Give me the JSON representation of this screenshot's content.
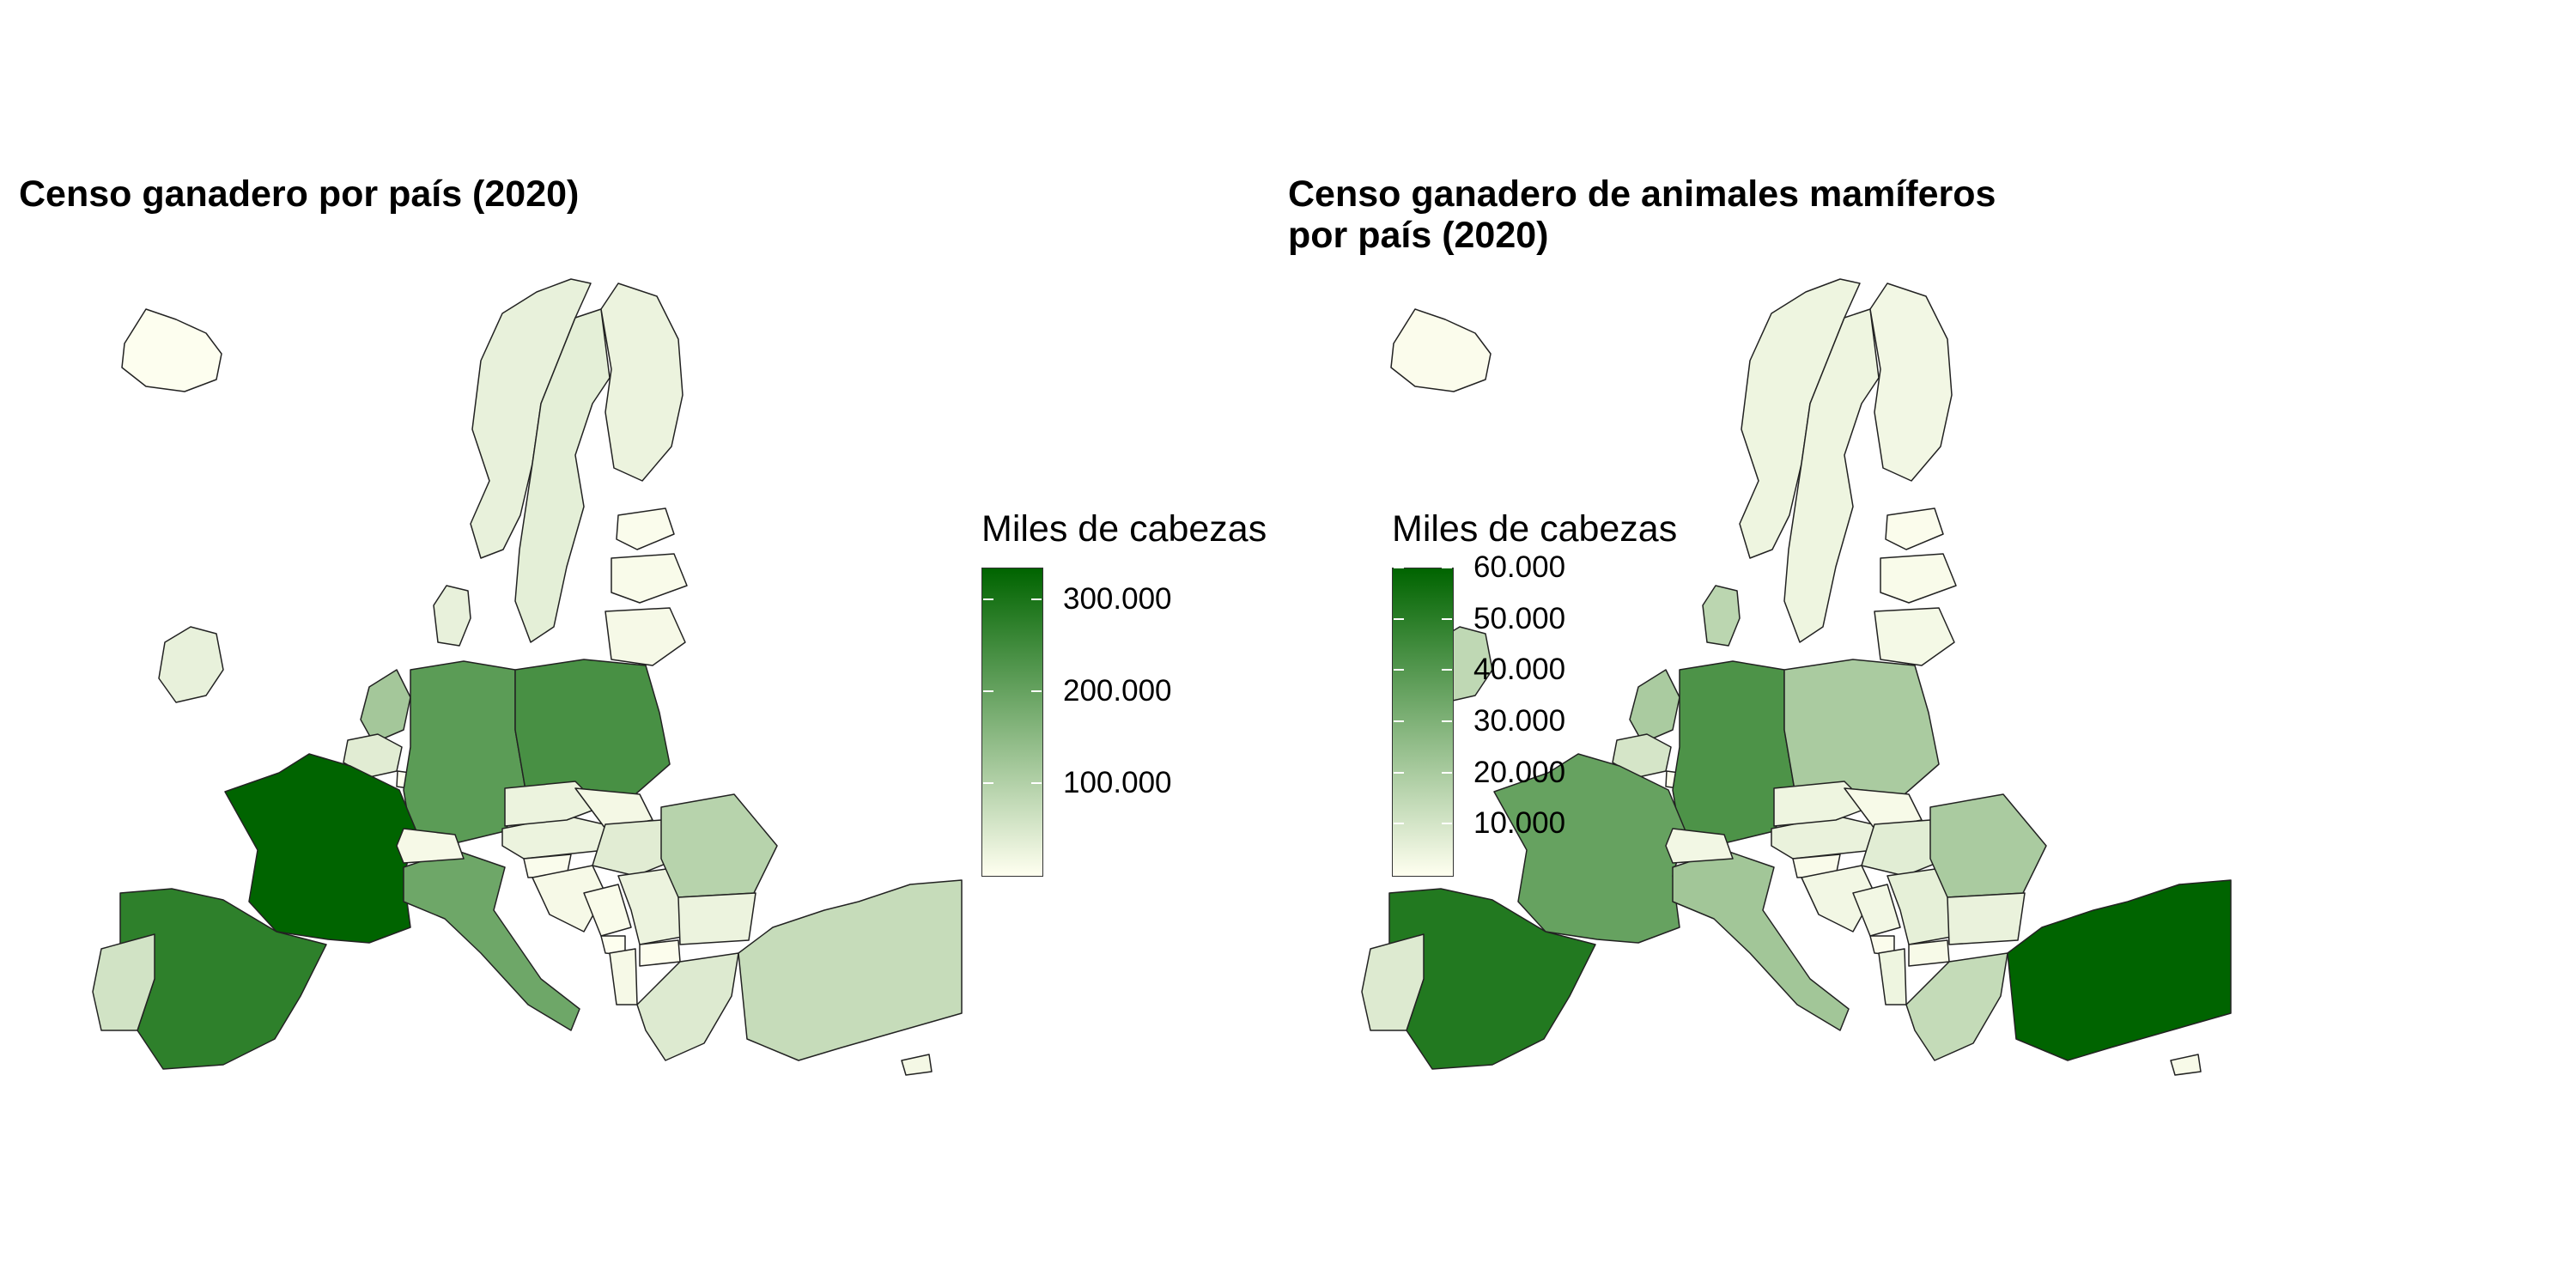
{
  "maps": [
    {
      "title": "Censo ganadero por país (2020)",
      "legend": {
        "title": "Miles de cabezas",
        "colors": {
          "low": "#FFFFF0",
          "high": "#006400"
        },
        "range": [
          0,
          335000
        ],
        "ticks": [
          {
            "value": 100000,
            "label": "100.000"
          },
          {
            "value": 200000,
            "label": "200.000"
          },
          {
            "value": 300000,
            "label": "300.000"
          }
        ]
      },
      "countries": [
        {
          "name": "Iceland",
          "value": 2000
        },
        {
          "name": "Norway",
          "value": 30000
        },
        {
          "name": "Sweden",
          "value": 35000
        },
        {
          "name": "Finland",
          "value": 25000
        },
        {
          "name": "Estonia",
          "value": 6000
        },
        {
          "name": "Latvia",
          "value": 8000
        },
        {
          "name": "Lithuania",
          "value": 12000
        },
        {
          "name": "Denmark",
          "value": 30000
        },
        {
          "name": "Ireland",
          "value": 30000
        },
        {
          "name": "Netherlands",
          "value": 120000
        },
        {
          "name": "Belgium",
          "value": 40000
        },
        {
          "name": "Luxembourg",
          "value": 1000
        },
        {
          "name": "Germany",
          "value": 215000
        },
        {
          "name": "Poland",
          "value": 240000
        },
        {
          "name": "France",
          "value": 335000
        },
        {
          "name": "Spain",
          "value": 275000
        },
        {
          "name": "Portugal",
          "value": 60000
        },
        {
          "name": "Italy",
          "value": 190000
        },
        {
          "name": "Switzerland",
          "value": 12000
        },
        {
          "name": "Austria",
          "value": 25000
        },
        {
          "name": "Czechia",
          "value": 25000
        },
        {
          "name": "Slovakia",
          "value": 15000
        },
        {
          "name": "Hungary",
          "value": 40000
        },
        {
          "name": "Slovenia",
          "value": 6000
        },
        {
          "name": "Croatia",
          "value": 12000
        },
        {
          "name": "Bosnia",
          "value": 8000
        },
        {
          "name": "Serbia",
          "value": 25000
        },
        {
          "name": "Montenegro",
          "value": 2000
        },
        {
          "name": "Albania",
          "value": 12000
        },
        {
          "name": "North Macedonia",
          "value": 4000
        },
        {
          "name": "Romania",
          "value": 95000
        },
        {
          "name": "Bulgaria",
          "value": 25000
        },
        {
          "name": "Greece",
          "value": 45000
        },
        {
          "name": "Turkey",
          "value": 75000
        },
        {
          "name": "Cyprus",
          "value": 15000
        }
      ]
    },
    {
      "title": "Censo ganadero de animales mamíferos\npor país (2020)",
      "legend": {
        "title": "Miles de cabezas",
        "colors": {
          "low": "#FFFFF0",
          "high": "#006400"
        },
        "range": [
          0,
          60000
        ],
        "ticks": [
          {
            "value": 10000,
            "label": "10.000"
          },
          {
            "value": 20000,
            "label": "20.000"
          },
          {
            "value": 30000,
            "label": "30.000"
          },
          {
            "value": 40000,
            "label": "40.000"
          },
          {
            "value": 50000,
            "label": "50.000"
          },
          {
            "value": 60000,
            "label": "60.000"
          }
        ]
      },
      "countries": [
        {
          "name": "Iceland",
          "value": 1000
        },
        {
          "name": "Norway",
          "value": 4000
        },
        {
          "name": "Sweden",
          "value": 4000
        },
        {
          "name": "Finland",
          "value": 3000
        },
        {
          "name": "Estonia",
          "value": 1000
        },
        {
          "name": "Latvia",
          "value": 1500
        },
        {
          "name": "Lithuania",
          "value": 2500
        },
        {
          "name": "Denmark",
          "value": 16000
        },
        {
          "name": "Ireland",
          "value": 15000
        },
        {
          "name": "Netherlands",
          "value": 20000
        },
        {
          "name": "Belgium",
          "value": 10000
        },
        {
          "name": "Luxembourg",
          "value": 500
        },
        {
          "name": "Germany",
          "value": 42000
        },
        {
          "name": "Poland",
          "value": 20000
        },
        {
          "name": "France",
          "value": 36000
        },
        {
          "name": "Spain",
          "value": 52000
        },
        {
          "name": "Portugal",
          "value": 8000
        },
        {
          "name": "Italy",
          "value": 22000
        },
        {
          "name": "Switzerland",
          "value": 3000
        },
        {
          "name": "Austria",
          "value": 5000
        },
        {
          "name": "Czechia",
          "value": 4000
        },
        {
          "name": "Slovakia",
          "value": 2000
        },
        {
          "name": "Hungary",
          "value": 7000
        },
        {
          "name": "Slovenia",
          "value": 1500
        },
        {
          "name": "Croatia",
          "value": 3000
        },
        {
          "name": "Bosnia",
          "value": 3000
        },
        {
          "name": "Serbia",
          "value": 6000
        },
        {
          "name": "Montenegro",
          "value": 1000
        },
        {
          "name": "Albania",
          "value": 4000
        },
        {
          "name": "North Macedonia",
          "value": 2000
        },
        {
          "name": "Romania",
          "value": 20000
        },
        {
          "name": "Bulgaria",
          "value": 5000
        },
        {
          "name": "Greece",
          "value": 14000
        },
        {
          "name": "Turkey",
          "value": 60000
        },
        {
          "name": "Cyprus",
          "value": 2000
        }
      ]
    }
  ]
}
